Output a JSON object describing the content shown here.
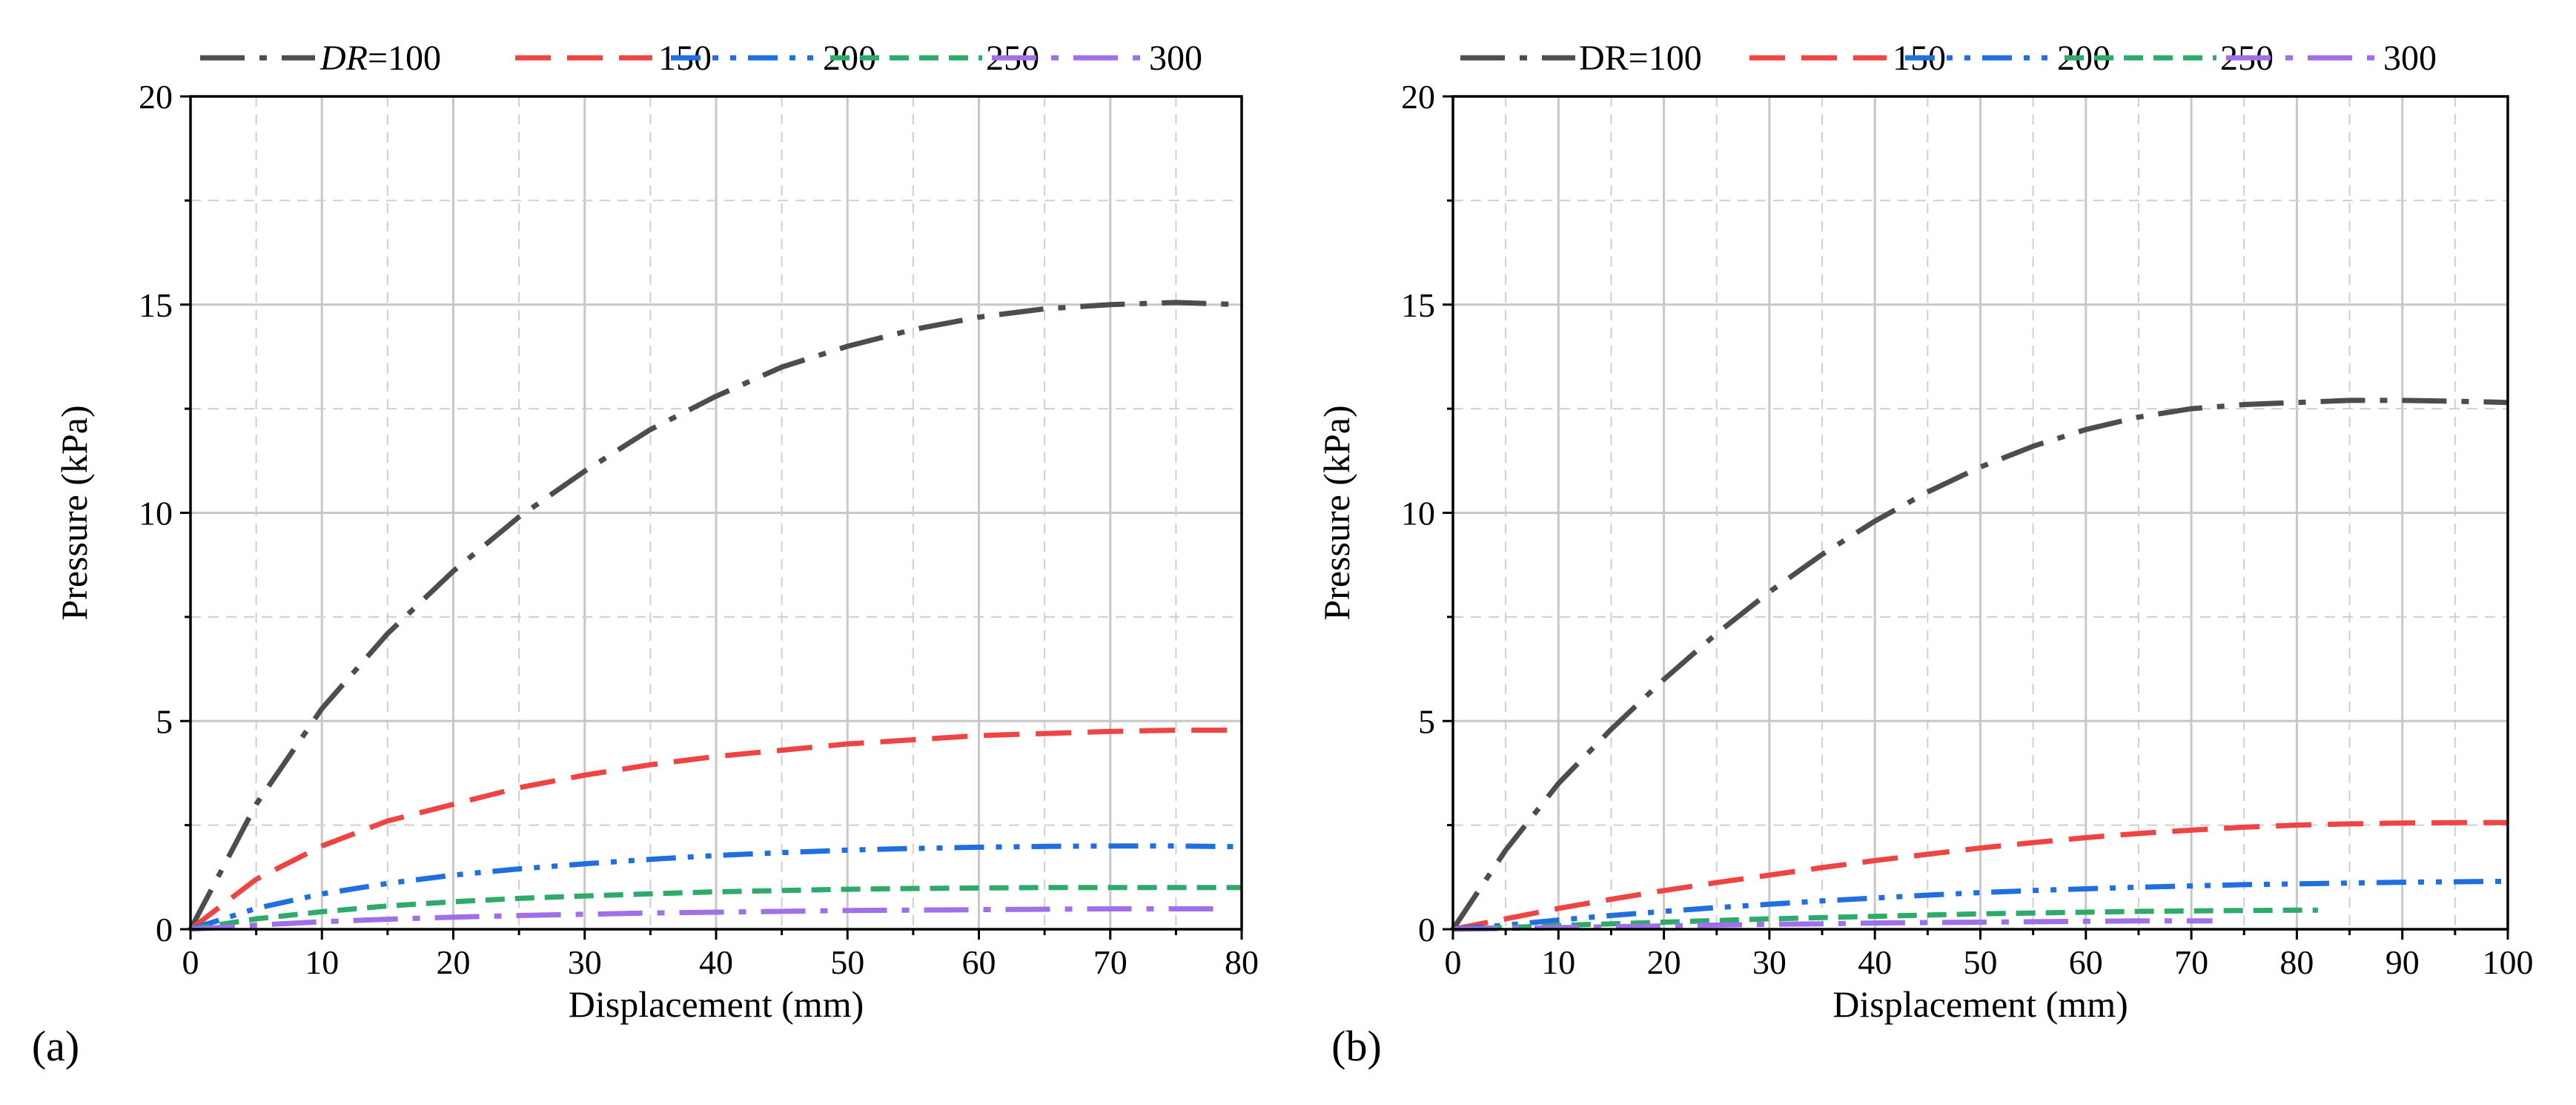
{
  "chart_data": [
    {
      "type": "line",
      "panel_label": "(a)",
      "xlabel": "Displacement (mm)",
      "ylabel": "Pressure (kPa)",
      "xlim": [
        0,
        80
      ],
      "ylim": [
        0,
        20
      ],
      "xticks": [
        0,
        10,
        20,
        30,
        40,
        50,
        60,
        70,
        80
      ],
      "yticks": [
        0,
        5,
        10,
        15,
        20
      ],
      "grid": true,
      "legend": {
        "placement": "top",
        "prefix": "DR",
        "prefix_italic": true,
        "entries": [
          "DR=100",
          "150",
          "200",
          "250",
          "300"
        ]
      },
      "series": [
        {
          "name": "DR=100",
          "color": "#4d4d4d",
          "dash": "dashdot",
          "x": [
            0,
            5,
            10,
            15,
            20,
            25,
            30,
            35,
            40,
            45,
            50,
            55,
            60,
            65,
            70,
            75,
            80
          ],
          "y": [
            0,
            3.0,
            5.3,
            7.1,
            8.6,
            9.9,
            11.0,
            12.0,
            12.8,
            13.5,
            14.0,
            14.4,
            14.7,
            14.9,
            15.0,
            15.05,
            15.0
          ]
        },
        {
          "name": "150",
          "color": "#ef4444",
          "dash": "dash",
          "x": [
            0,
            5,
            10,
            15,
            20,
            25,
            30,
            35,
            40,
            45,
            50,
            55,
            60,
            65,
            70,
            75,
            80
          ],
          "y": [
            0,
            1.2,
            2.0,
            2.6,
            3.0,
            3.4,
            3.7,
            3.95,
            4.15,
            4.3,
            4.45,
            4.55,
            4.65,
            4.7,
            4.75,
            4.78,
            4.78
          ]
        },
        {
          "name": "200",
          "color": "#1f6fe0",
          "dash": "dashdotdot",
          "x": [
            0,
            5,
            10,
            15,
            20,
            25,
            30,
            35,
            40,
            45,
            50,
            55,
            60,
            65,
            70,
            75,
            80
          ],
          "y": [
            0,
            0.5,
            0.85,
            1.1,
            1.3,
            1.45,
            1.57,
            1.68,
            1.77,
            1.84,
            1.9,
            1.94,
            1.97,
            1.99,
            2.0,
            2.0,
            1.98
          ]
        },
        {
          "name": "250",
          "color": "#2eaa6a",
          "dash": "dash-short",
          "x": [
            0,
            5,
            10,
            15,
            20,
            25,
            30,
            35,
            40,
            45,
            50,
            55,
            60,
            65,
            70,
            75,
            80
          ],
          "y": [
            0,
            0.25,
            0.42,
            0.56,
            0.66,
            0.74,
            0.8,
            0.85,
            0.9,
            0.93,
            0.96,
            0.98,
            0.99,
            1.0,
            1.0,
            1.0,
            1.0
          ]
        },
        {
          "name": "300",
          "color": "#a070e8",
          "dash": "dashdot",
          "x": [
            0,
            5,
            10,
            15,
            20,
            25,
            30,
            35,
            40,
            45,
            50,
            55,
            60,
            65,
            70,
            75,
            78
          ],
          "y": [
            0,
            0.1,
            0.18,
            0.24,
            0.29,
            0.33,
            0.36,
            0.39,
            0.41,
            0.43,
            0.45,
            0.46,
            0.47,
            0.48,
            0.49,
            0.49,
            0.49
          ]
        }
      ]
    },
    {
      "type": "line",
      "panel_label": "(b)",
      "xlabel": "Displacement (mm)",
      "ylabel": "Pressure (kPa)",
      "xlim": [
        0,
        100
      ],
      "ylim": [
        0,
        20
      ],
      "xticks": [
        0,
        10,
        20,
        30,
        40,
        50,
        60,
        70,
        80,
        90,
        100
      ],
      "yticks": [
        0,
        5,
        10,
        15,
        20
      ],
      "grid": true,
      "legend": {
        "placement": "top",
        "prefix": "DR",
        "prefix_italic": false,
        "entries": [
          "DR=100",
          "150",
          "200",
          "250",
          "300"
        ]
      },
      "series": [
        {
          "name": "DR=100",
          "color": "#4d4d4d",
          "dash": "dashdot",
          "x": [
            0,
            5,
            10,
            15,
            20,
            25,
            30,
            35,
            40,
            45,
            50,
            55,
            60,
            65,
            70,
            75,
            80,
            85,
            90,
            95,
            100
          ],
          "y": [
            0,
            1.9,
            3.5,
            4.8,
            6.0,
            7.1,
            8.1,
            9.0,
            9.8,
            10.5,
            11.1,
            11.6,
            12.0,
            12.3,
            12.5,
            12.6,
            12.65,
            12.7,
            12.7,
            12.68,
            12.65
          ]
        },
        {
          "name": "150",
          "color": "#ef4444",
          "dash": "dash",
          "x": [
            0,
            5,
            10,
            15,
            20,
            25,
            30,
            35,
            40,
            45,
            50,
            55,
            60,
            65,
            70,
            75,
            80,
            85,
            90,
            95,
            100
          ],
          "y": [
            0,
            0.25,
            0.5,
            0.72,
            0.93,
            1.12,
            1.3,
            1.48,
            1.65,
            1.8,
            1.95,
            2.08,
            2.2,
            2.3,
            2.38,
            2.45,
            2.5,
            2.53,
            2.55,
            2.56,
            2.56
          ]
        },
        {
          "name": "200",
          "color": "#1f6fe0",
          "dash": "dashdotdot",
          "x": [
            0,
            5,
            10,
            15,
            20,
            25,
            30,
            35,
            40,
            45,
            50,
            55,
            60,
            65,
            70,
            75,
            80,
            85,
            90,
            95,
            100
          ],
          "y": [
            0,
            0.1,
            0.22,
            0.33,
            0.43,
            0.52,
            0.6,
            0.68,
            0.75,
            0.82,
            0.88,
            0.93,
            0.97,
            1.01,
            1.04,
            1.07,
            1.09,
            1.11,
            1.13,
            1.14,
            1.15
          ]
        },
        {
          "name": "250",
          "color": "#2eaa6a",
          "dash": "dash-short",
          "x": [
            0,
            5,
            10,
            15,
            20,
            25,
            30,
            35,
            40,
            45,
            50,
            55,
            60,
            65,
            70,
            75,
            82
          ],
          "y": [
            0,
            0.04,
            0.09,
            0.13,
            0.17,
            0.21,
            0.25,
            0.28,
            0.31,
            0.34,
            0.37,
            0.39,
            0.41,
            0.43,
            0.44,
            0.45,
            0.46
          ]
        },
        {
          "name": "300",
          "color": "#a070e8",
          "dash": "dashdot",
          "x": [
            0,
            5,
            10,
            15,
            20,
            25,
            30,
            35,
            40,
            45,
            50,
            55,
            60,
            65,
            72
          ],
          "y": [
            0,
            0.02,
            0.04,
            0.06,
            0.08,
            0.1,
            0.12,
            0.13,
            0.15,
            0.16,
            0.17,
            0.18,
            0.19,
            0.2,
            0.2
          ]
        }
      ]
    }
  ]
}
